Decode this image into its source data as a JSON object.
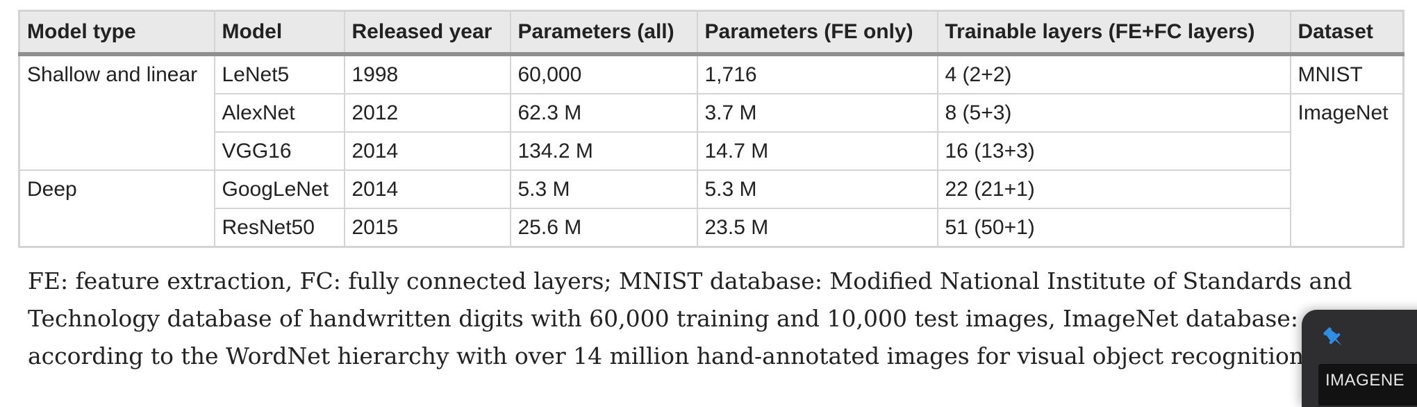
{
  "table": {
    "headers": [
      "Model type",
      "Model",
      "Released year",
      "Parameters (all)",
      "Parameters (FE only)",
      "Trainable layers (FE+FC layers)",
      "Dataset"
    ],
    "model_types": [
      "Shallow and linear",
      "Deep"
    ],
    "datasets": [
      "MNIST",
      "ImageNet"
    ],
    "rows": [
      {
        "model": "LeNet5",
        "year": "1998",
        "params_all": "60,000",
        "params_fe": "1,716",
        "layers": "4 (2+2)"
      },
      {
        "model": "AlexNet",
        "year": "2012",
        "params_all": "62.3 M",
        "params_fe": "3.7 M",
        "layers": "8 (5+3)"
      },
      {
        "model": "VGG16",
        "year": "2014",
        "params_all": "134.2 M",
        "params_fe": "14.7 M",
        "layers": "16 (13+3)"
      },
      {
        "model": "GoogLeNet",
        "year": "2014",
        "params_all": "5.3 M",
        "params_fe": "5.3 M",
        "layers": "22 (21+1)"
      },
      {
        "model": "ResNet50",
        "year": "2015",
        "params_all": "25.6 M",
        "params_fe": "23.5 M",
        "layers": "51 (50+1)"
      }
    ]
  },
  "caption": {
    "lines": [
      "FE: feature extraction, FC: fully connected layers; MNIST database: Modified National Institute of Standards and",
      "Technology database of handwritten digits with 60,000 training and 10,000 test images, ImageNet database: organi",
      "according to the WordNet hierarchy with over 14 million hand-annotated images for visual object recognition resear"
    ]
  },
  "pin_widget": {
    "icon": "pin-icon",
    "tab_label": "IMAGENE",
    "accent_color": "#2f8fe6"
  }
}
